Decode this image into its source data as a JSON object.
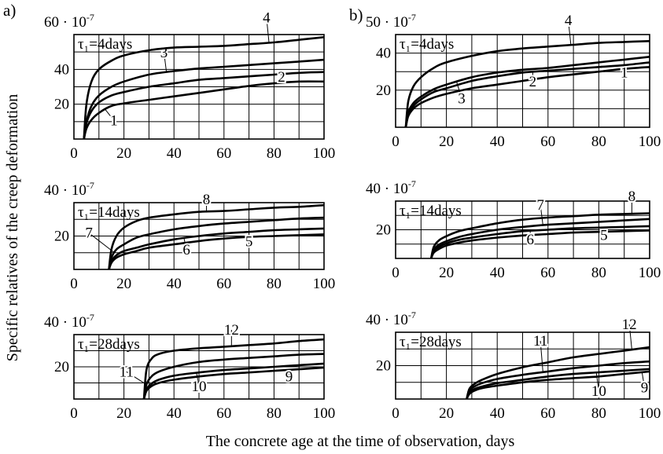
{
  "figure": {
    "panel_labels": [
      "a)",
      "b)"
    ],
    "y_axis_title": "Specific relatives of the creep deformation",
    "x_axis_title": "The concrete age at the time of observation, days",
    "line_color": "#000000"
  },
  "chart_data": [
    {
      "id": "a1",
      "panel": "a)",
      "type": "line",
      "ymax_label": "60",
      "ymax_exp": "-7",
      "ymax_prefix": " · 10",
      "annotation": "τ₁=4days",
      "tau": 4,
      "xlim": [
        0,
        100
      ],
      "ylim": [
        0,
        60
      ],
      "xticks": [
        "0",
        "20",
        "40",
        "60",
        "80",
        "100"
      ],
      "yticks": [
        20,
        40
      ],
      "series": [
        {
          "name": "1",
          "label_at": [
            16,
            8
          ],
          "x": [
            4,
            5,
            7,
            10,
            15,
            20,
            30,
            40,
            50,
            60,
            70,
            80,
            90,
            100
          ],
          "y": [
            0,
            6,
            11,
            15,
            19,
            20.5,
            22.5,
            24.5,
            26.5,
            28.5,
            30.5,
            32,
            33,
            33
          ]
        },
        {
          "name": "2",
          "label_at": [
            83,
            33
          ],
          "x": [
            4,
            5,
            7,
            10,
            15,
            20,
            30,
            40,
            50,
            60,
            70,
            80,
            90,
            100
          ],
          "y": [
            0,
            9,
            16,
            21,
            25,
            27,
            30,
            32,
            34,
            35,
            36,
            37,
            38,
            38.5
          ]
        },
        {
          "name": "3",
          "label_at": [
            36,
            47
          ],
          "x": [
            4,
            5,
            7,
            10,
            15,
            20,
            30,
            40,
            50,
            60,
            70,
            80,
            90,
            100
          ],
          "y": [
            0,
            10,
            19,
            25,
            30,
            33,
            37,
            39,
            40.5,
            41.5,
            42.5,
            43.5,
            44.5,
            45.5
          ]
        },
        {
          "name": "4",
          "label_at": [
            77,
            67
          ],
          "x": [
            4,
            5,
            7,
            10,
            15,
            20,
            30,
            40,
            50,
            60,
            70,
            80,
            90,
            100
          ],
          "y": [
            0,
            20,
            33,
            40,
            45,
            48,
            51,
            52.5,
            53,
            53.5,
            54.5,
            55.5,
            57,
            58.5
          ]
        }
      ]
    },
    {
      "id": "b1",
      "panel": "b)",
      "type": "line",
      "ymax_label": "50",
      "ymax_exp": "-7",
      "ymax_prefix": " · 10",
      "annotation": "τ₁=4days",
      "tau": 4,
      "xlim": [
        0,
        100
      ],
      "ylim": [
        0,
        50
      ],
      "xticks": [
        "0",
        "20",
        "40",
        "60",
        "80",
        "100"
      ],
      "yticks": [
        20,
        40
      ],
      "series": [
        {
          "name": "1",
          "label_at": [
            90,
            27
          ],
          "x": [
            4,
            5,
            7,
            10,
            15,
            20,
            30,
            40,
            50,
            60,
            70,
            80,
            90,
            100
          ],
          "y": [
            0,
            6,
            10,
            13,
            16,
            18,
            21,
            23,
            25,
            27,
            28.5,
            30,
            31.5,
            32.5
          ]
        },
        {
          "name": "2",
          "label_at": [
            54,
            22
          ],
          "x": [
            4,
            5,
            7,
            10,
            15,
            20,
            30,
            40,
            50,
            60,
            70,
            80,
            90,
            100
          ],
          "y": [
            0,
            7,
            11.5,
            15,
            19,
            21,
            25,
            27.5,
            29.5,
            30.5,
            31.5,
            32.5,
            33.5,
            35
          ]
        },
        {
          "name": "3",
          "label_at": [
            26,
            13
          ],
          "x": [
            4,
            5,
            7,
            10,
            15,
            20,
            30,
            40,
            50,
            60,
            70,
            80,
            90,
            100
          ],
          "y": [
            0,
            8,
            13,
            16.5,
            20.5,
            23,
            27,
            29.5,
            31,
            32,
            33.5,
            35,
            36.5,
            38
          ]
        },
        {
          "name": "4",
          "label_at": [
            68,
            55
          ],
          "x": [
            4,
            5,
            7,
            10,
            15,
            20,
            30,
            40,
            50,
            60,
            70,
            80,
            90,
            100
          ],
          "y": [
            0,
            14,
            22,
            27,
            32,
            35,
            38.5,
            41,
            42.5,
            43.5,
            44.5,
            45.5,
            46,
            46.5
          ]
        }
      ]
    },
    {
      "id": "a2",
      "panel": "a)",
      "type": "line",
      "ymax_label": "40",
      "ymax_exp": "-7",
      "ymax_prefix": " · 10",
      "annotation": "τ₁=14days",
      "tau": 14,
      "xlim": [
        0,
        100
      ],
      "ylim": [
        0,
        40
      ],
      "xticks": [
        "0",
        "20",
        "40",
        "60",
        "80",
        "100"
      ],
      "yticks": [
        20
      ],
      "series": [
        {
          "name": "5",
          "label_at": [
            70,
            14
          ],
          "x": [
            14,
            15,
            17,
            20,
            25,
            30,
            40,
            50,
            60,
            70,
            80,
            90,
            100
          ],
          "y": [
            0,
            4,
            7,
            9,
            11,
            13,
            15,
            17,
            18.5,
            19.5,
            20,
            20.5,
            21
          ]
        },
        {
          "name": "6",
          "label_at": [
            45,
            9
          ],
          "x": [
            14,
            15,
            17,
            20,
            25,
            30,
            40,
            50,
            60,
            70,
            80,
            90,
            100
          ],
          "y": [
            0,
            5,
            8.5,
            11,
            13,
            15,
            18,
            20,
            21.5,
            22.5,
            23.5,
            24,
            24.5
          ]
        },
        {
          "name": "7",
          "label_at": [
            6,
            19
          ],
          "x": [
            14,
            15,
            17,
            20,
            25,
            30,
            40,
            50,
            60,
            70,
            80,
            90,
            100
          ],
          "y": [
            0,
            7,
            12,
            15,
            19,
            21,
            24,
            26,
            27.5,
            28.5,
            29.5,
            30.5,
            31
          ]
        },
        {
          "name": "8",
          "label_at": [
            53,
            39
          ],
          "x": [
            14,
            15,
            17,
            20,
            25,
            30,
            40,
            50,
            60,
            70,
            80,
            90,
            100
          ],
          "y": [
            0,
            12,
            20,
            25,
            29,
            31,
            33,
            34.5,
            35,
            36,
            37,
            37.5,
            38.5
          ]
        }
      ]
    },
    {
      "id": "b2",
      "panel": "b)",
      "type": "line",
      "ymax_label": "40",
      "ymax_exp": "-7",
      "ymax_prefix": " · 10",
      "annotation": "τ₁=14days",
      "tau": 14,
      "xlim": [
        0,
        100
      ],
      "ylim": [
        0,
        40
      ],
      "xticks": [
        "0",
        "20",
        "40",
        "60",
        "80",
        "100"
      ],
      "yticks": [
        20
      ],
      "series": [
        {
          "name": "5",
          "label_at": [
            82,
            13
          ],
          "x": [
            14,
            15,
            17,
            20,
            25,
            30,
            40,
            50,
            60,
            70,
            80,
            90,
            100
          ],
          "y": [
            0,
            4,
            6.5,
            9,
            11,
            12.5,
            14.5,
            16,
            17,
            18,
            18.5,
            19,
            19.5
          ]
        },
        {
          "name": "6",
          "label_at": [
            53,
            10
          ],
          "x": [
            14,
            15,
            17,
            20,
            25,
            30,
            40,
            50,
            60,
            70,
            80,
            90,
            100
          ],
          "y": [
            0,
            5,
            8,
            10.5,
            13,
            14.5,
            17,
            19,
            20,
            21,
            21.5,
            22,
            22.5
          ]
        },
        {
          "name": "7",
          "label_at": [
            57,
            34
          ],
          "x": [
            14,
            15,
            17,
            20,
            25,
            30,
            40,
            50,
            60,
            70,
            80,
            90,
            100
          ],
          "y": [
            0,
            6,
            9.5,
            12,
            15,
            17,
            20,
            22,
            23.5,
            24.5,
            25.5,
            26.5,
            27.5
          ]
        },
        {
          "name": "8",
          "label_at": [
            93,
            40
          ],
          "x": [
            14,
            15,
            17,
            20,
            25,
            30,
            40,
            50,
            60,
            70,
            80,
            90,
            100
          ],
          "y": [
            0,
            8,
            12.5,
            15.5,
            19,
            21,
            24.5,
            27,
            28.5,
            29.5,
            30.5,
            31,
            31.5
          ]
        }
      ]
    },
    {
      "id": "a3",
      "panel": "a)",
      "type": "line",
      "ymax_label": "40",
      "ymax_exp": "-7",
      "ymax_prefix": " · 10",
      "annotation": "τ₁=28days",
      "tau": 28,
      "xlim": [
        0,
        100
      ],
      "ylim": [
        0,
        40
      ],
      "xticks": [
        "0",
        "20",
        "40",
        "60",
        "80",
        "100"
      ],
      "yticks": [
        20
      ],
      "series": [
        {
          "name": "9",
          "label_at": [
            86,
            11
          ],
          "x": [
            28,
            29,
            31,
            34,
            40,
            50,
            60,
            70,
            80,
            90,
            100
          ],
          "y": [
            0,
            5,
            8,
            10,
            12,
            14,
            15.5,
            16.5,
            17.5,
            18.5,
            19.5
          ]
        },
        {
          "name": "10",
          "label_at": [
            50,
            5
          ],
          "x": [
            28,
            29,
            31,
            34,
            40,
            50,
            60,
            70,
            80,
            90,
            100
          ],
          "y": [
            0,
            6,
            9.5,
            12,
            14.5,
            16.5,
            18,
            19,
            20,
            21,
            22
          ]
        },
        {
          "name": "11",
          "label_at": [
            21,
            14
          ],
          "x": [
            28,
            29,
            31,
            34,
            40,
            50,
            60,
            70,
            80,
            90,
            100
          ],
          "y": [
            0,
            9,
            14,
            17,
            20,
            23,
            24.5,
            25.5,
            26.5,
            27.5,
            28
          ]
        },
        {
          "name": "12",
          "label_at": [
            63,
            40
          ],
          "x": [
            28,
            29,
            31,
            34,
            40,
            50,
            60,
            70,
            80,
            90,
            100
          ],
          "y": [
            0,
            18,
            25,
            28,
            30,
            31.5,
            32.5,
            33.5,
            34.5,
            36,
            37
          ]
        }
      ]
    },
    {
      "id": "b3",
      "panel": "b)",
      "type": "line",
      "ymax_label": "40",
      "ymax_exp": "-7",
      "ymax_prefix": " · 10",
      "annotation": "τ₁=28days",
      "tau": 28,
      "xlim": [
        0,
        100
      ],
      "ylim": [
        0,
        40
      ],
      "xticks": [
        "0",
        "20",
        "40",
        "60",
        "80",
        "100"
      ],
      "yticks": [
        20
      ],
      "series": [
        {
          "name": "9",
          "label_at": [
            98,
            4
          ],
          "x": [
            28,
            29,
            31,
            34,
            40,
            50,
            60,
            70,
            80,
            90,
            100
          ],
          "y": [
            0,
            3,
            5,
            6.5,
            8,
            10,
            11.5,
            12.5,
            13.5,
            15,
            16.5
          ]
        },
        {
          "name": "10",
          "label_at": [
            80,
            2
          ],
          "x": [
            28,
            29,
            31,
            34,
            40,
            50,
            60,
            70,
            80,
            90,
            100
          ],
          "y": [
            0,
            4,
            6,
            7.5,
            9.5,
            11.5,
            13.5,
            15,
            16,
            17,
            18
          ]
        },
        {
          "name": "11",
          "label_at": [
            57,
            32
          ],
          "x": [
            28,
            29,
            31,
            34,
            40,
            50,
            60,
            70,
            80,
            90,
            100
          ],
          "y": [
            0,
            5,
            7.5,
            9.5,
            12,
            14.5,
            16.5,
            18.5,
            20,
            21.5,
            22.5
          ]
        },
        {
          "name": "12",
          "label_at": [
            92,
            42
          ],
          "x": [
            28,
            29,
            31,
            34,
            40,
            50,
            60,
            70,
            80,
            90,
            100
          ],
          "y": [
            0,
            6,
            9,
            11.5,
            15,
            19,
            22,
            25,
            27,
            29,
            31
          ]
        }
      ]
    }
  ]
}
